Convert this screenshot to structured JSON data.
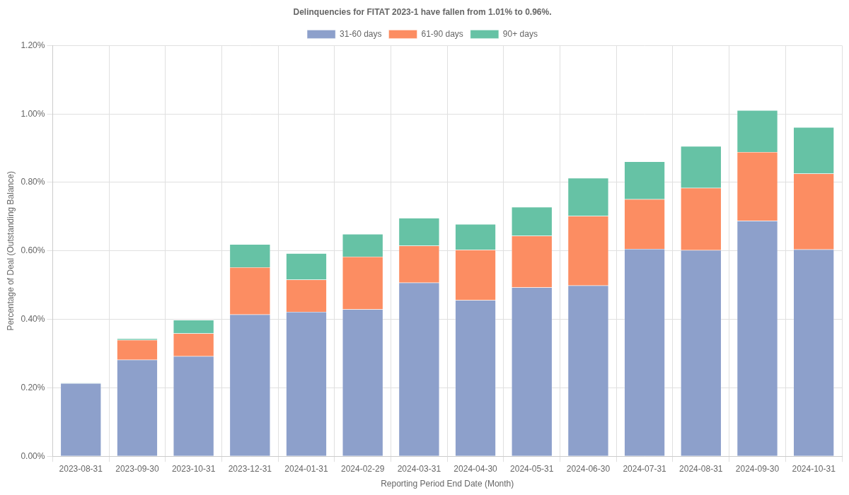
{
  "chart_data": {
    "type": "bar",
    "title": "Delinquencies for FITAT 2023-1 have fallen from 1.01% to 0.96%.",
    "x_label": "Reporting Period End Date (Month)",
    "y_label": "Percentage of Deal (Outstanding Balance)",
    "categories": [
      "2023-08-31",
      "2023-09-30",
      "2023-10-31",
      "2023-12-31",
      "2024-01-31",
      "2024-02-29",
      "2024-03-31",
      "2024-04-30",
      "2024-05-31",
      "2024-06-30",
      "2024-07-31",
      "2024-08-31",
      "2024-09-30",
      "2024-10-31"
    ],
    "series": [
      {
        "name": "31-60 days",
        "color": "#8da0cb",
        "values": [
          0.213,
          0.282,
          0.292,
          0.414,
          0.422,
          0.429,
          0.507,
          0.456,
          0.493,
          0.499,
          0.606,
          0.602,
          0.688,
          0.604
        ]
      },
      {
        "name": "61-90 days",
        "color": "#fc8d62",
        "values": [
          0.0,
          0.058,
          0.067,
          0.138,
          0.094,
          0.154,
          0.108,
          0.147,
          0.151,
          0.203,
          0.145,
          0.182,
          0.201,
          0.222
        ]
      },
      {
        "name": "90+ days",
        "color": "#66c2a5",
        "values": [
          0.001,
          0.004,
          0.039,
          0.067,
          0.077,
          0.066,
          0.081,
          0.075,
          0.084,
          0.111,
          0.11,
          0.122,
          0.122,
          0.135
        ]
      }
    ],
    "ylim": [
      0,
      1.2
    ],
    "yticks": [
      {
        "value": 0,
        "label": "0.00%"
      },
      {
        "value": 0.2,
        "label": "0.20%"
      },
      {
        "value": 0.4,
        "label": "0.40%"
      },
      {
        "value": 0.6,
        "label": "0.60%"
      },
      {
        "value": 0.8,
        "label": "0.80%"
      },
      {
        "value": 1.0,
        "label": "1.00%"
      },
      {
        "value": 1.2,
        "label": "1.20%"
      }
    ],
    "stacked": true,
    "grid": true,
    "legend": "top"
  }
}
